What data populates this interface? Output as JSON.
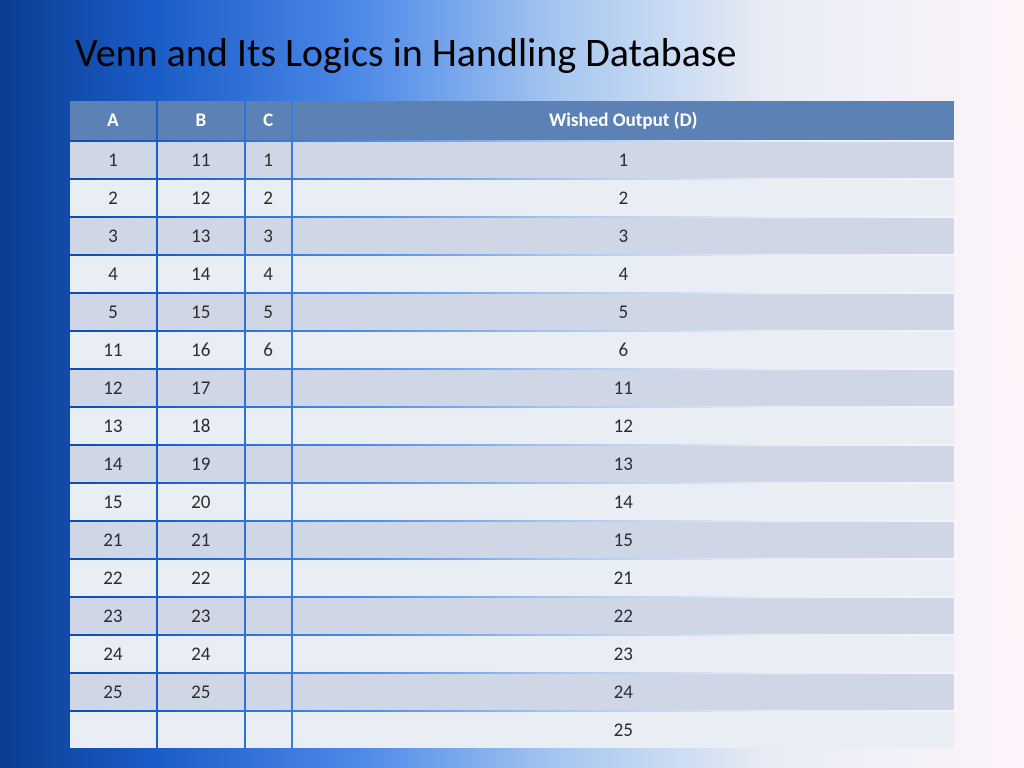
{
  "title": "Venn and Its Logics in Handling Database",
  "table": {
    "type": "table",
    "header_bg": "#5b81b5",
    "header_fg": "#ffffff",
    "row_odd_bg": "#cfd7e6",
    "row_even_bg": "#e9edf4",
    "cell_fg": "#2d2d2d",
    "header_fontsize": 19,
    "cell_fontsize": 19,
    "columns": [
      "A",
      "B",
      "C",
      "Wished Output (D)"
    ],
    "rows": [
      [
        "1",
        "11",
        "1",
        "1"
      ],
      [
        "2",
        "12",
        "2",
        "2"
      ],
      [
        "3",
        "13",
        "3",
        "3"
      ],
      [
        "4",
        "14",
        "4",
        "4"
      ],
      [
        "5",
        "15",
        "5",
        "5"
      ],
      [
        "11",
        "16",
        "6",
        "6"
      ],
      [
        "12",
        "17",
        "",
        "11"
      ],
      [
        "13",
        "18",
        "",
        "12"
      ],
      [
        "14",
        "19",
        "",
        "13"
      ],
      [
        "15",
        "20",
        "",
        "14"
      ],
      [
        "21",
        "21",
        "",
        "15"
      ],
      [
        "22",
        "22",
        "",
        "21"
      ],
      [
        "23",
        "23",
        "",
        "22"
      ],
      [
        "24",
        "24",
        "",
        "23"
      ],
      [
        "25",
        "25",
        "",
        "24"
      ],
      [
        "",
        "",
        "",
        "25"
      ]
    ]
  }
}
